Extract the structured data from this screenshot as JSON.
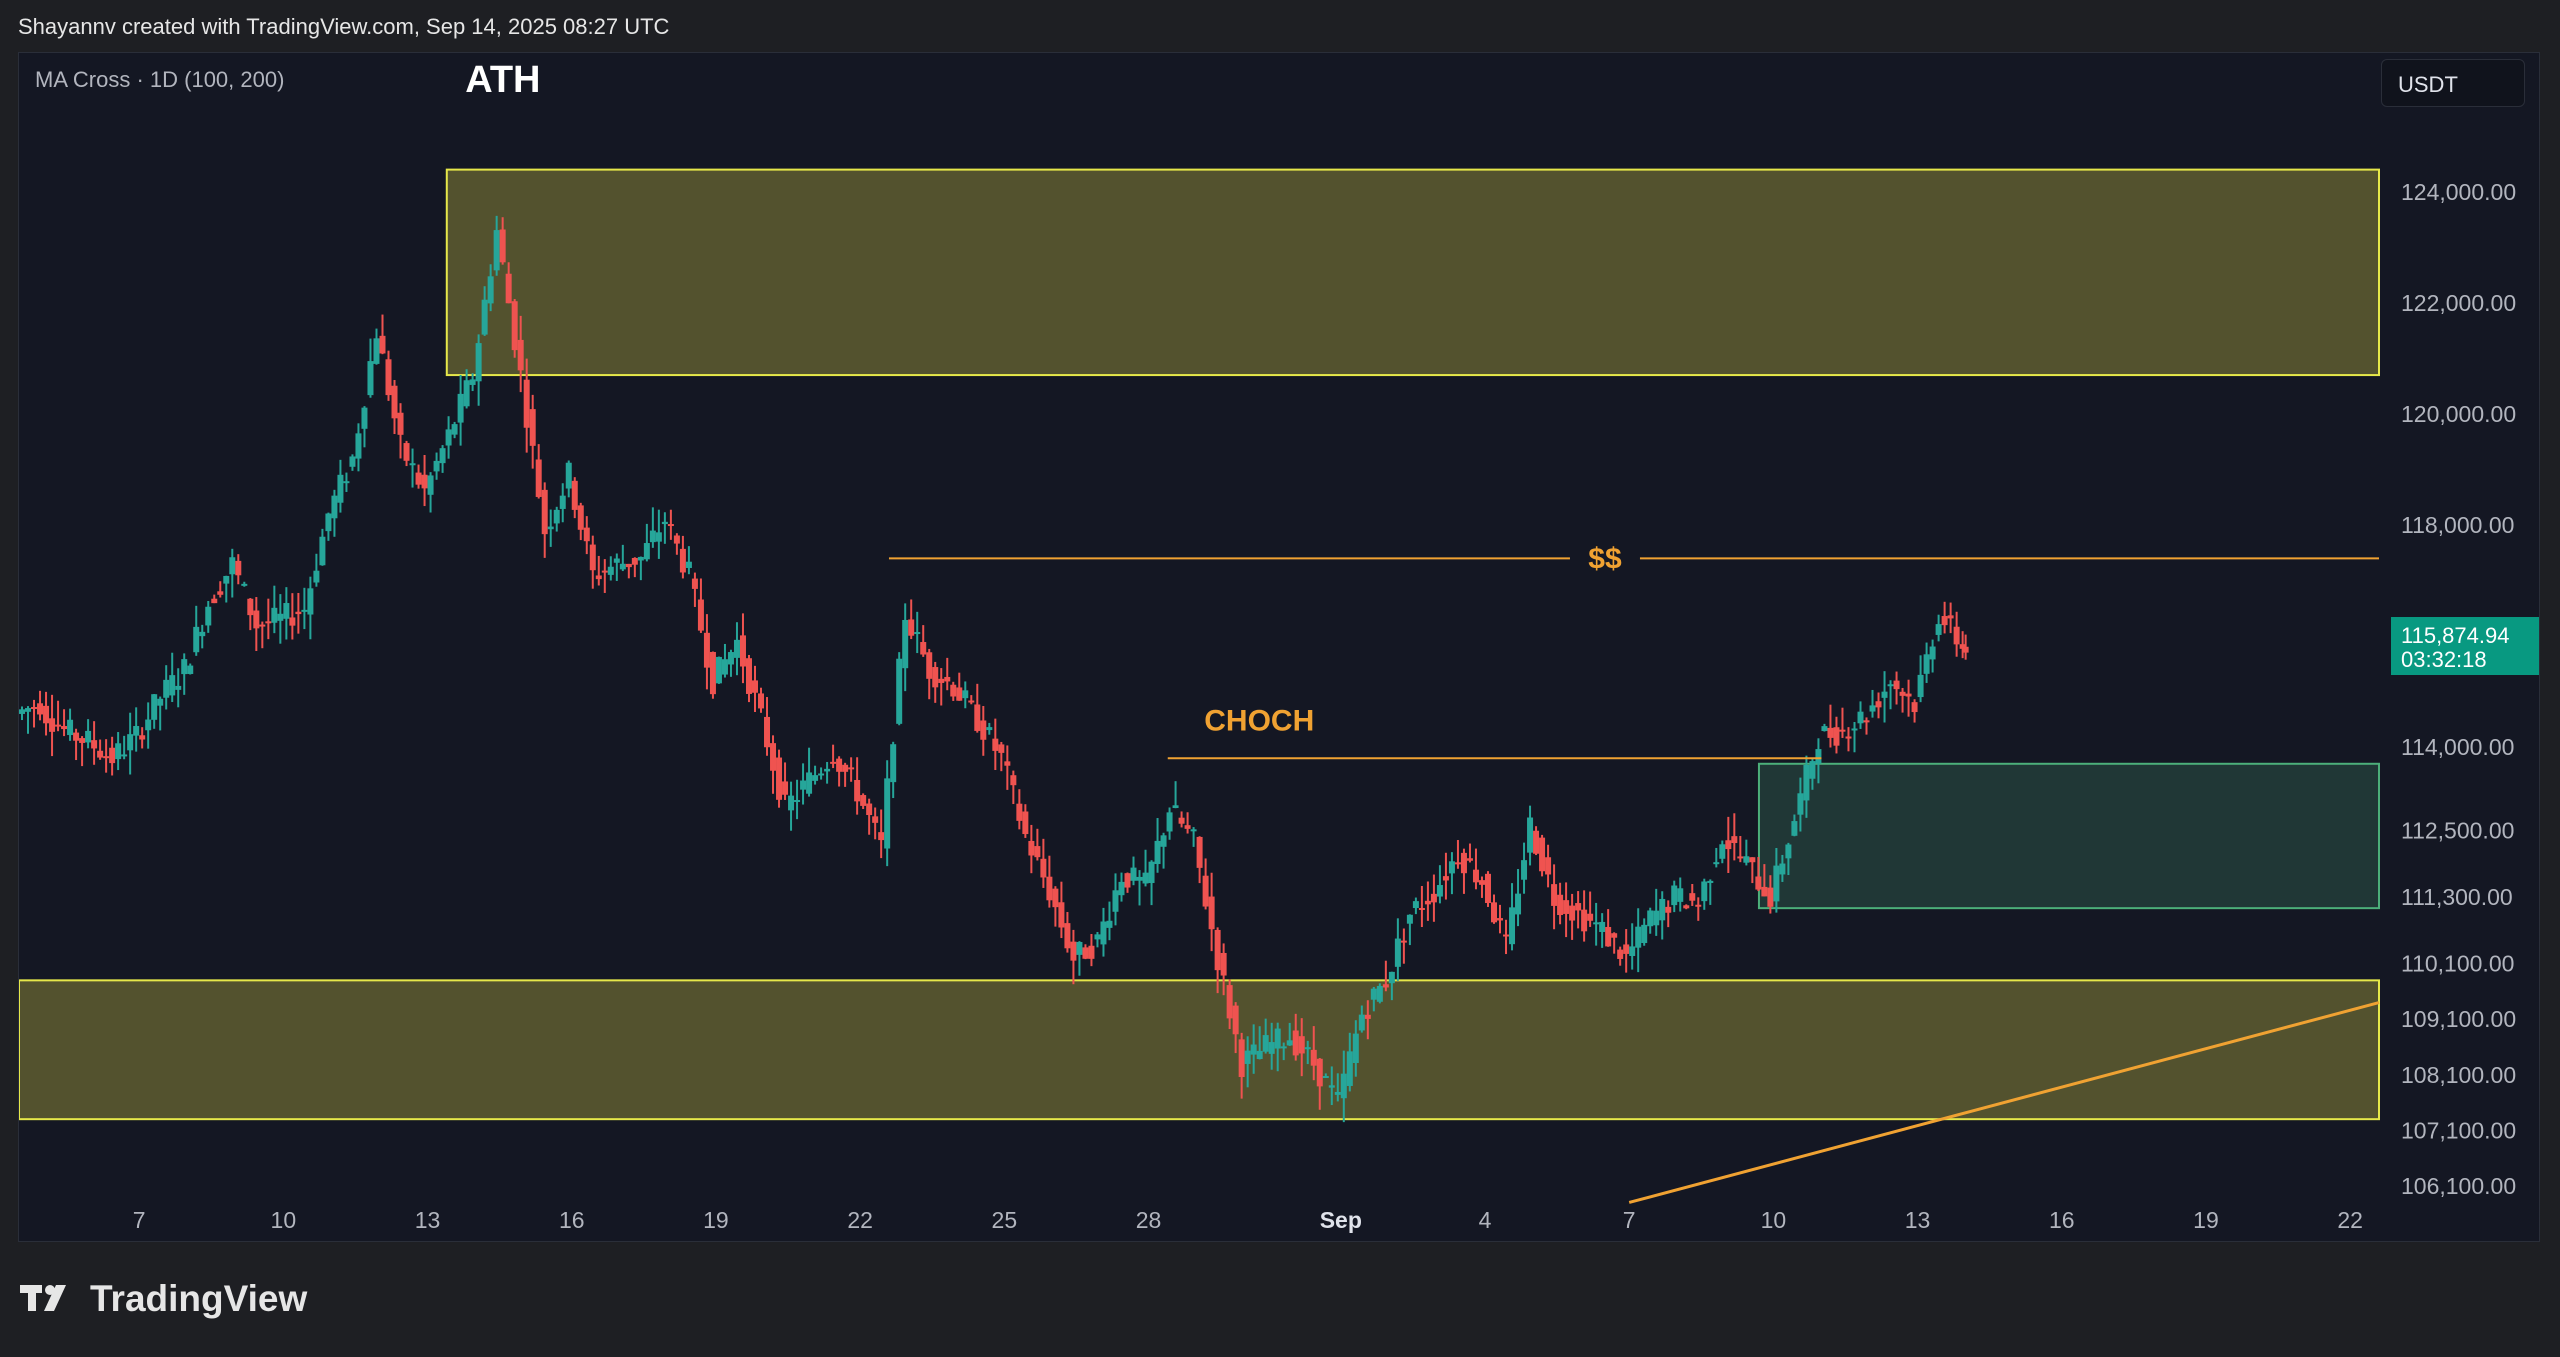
{
  "header": {
    "attribution": "Shayannv created with TradingView.com, Sep 14, 2025 08:27 UTC"
  },
  "indicator": {
    "label": "MA Cross · 1D (100, 200)"
  },
  "currency": "USDT",
  "brand": "TradingView",
  "colors": {
    "background": "#141723",
    "up": "#26a69a",
    "down": "#ef5350",
    "supply_zone": "#e6e84a",
    "demand_zone": "#4caf7a",
    "level_line": "#f0a232",
    "current_price_bg": "#089981"
  },
  "chart_data": {
    "type": "candlestick",
    "title": "",
    "xlabel": "",
    "ylabel": "",
    "ylim": [
      104800,
      126500
    ],
    "y_axis_ticks": [
      {
        "value": 124000,
        "label": "124,000.00"
      },
      {
        "value": 122000,
        "label": "122,000.00"
      },
      {
        "value": 120000,
        "label": "120,000.00"
      },
      {
        "value": 118000,
        "label": "118,000.00"
      },
      {
        "value": 114000,
        "label": "114,000.00"
      },
      {
        "value": 112500,
        "label": "112,500.00"
      },
      {
        "value": 111300,
        "label": "111,300.00"
      },
      {
        "value": 110100,
        "label": "110,100.00"
      },
      {
        "value": 109100,
        "label": "109,100.00"
      },
      {
        "value": 108100,
        "label": "108,100.00"
      },
      {
        "value": 107100,
        "label": "107,100.00"
      },
      {
        "value": 106100,
        "label": "106,100.00"
      }
    ],
    "x_axis_ticks": [
      {
        "day": 7,
        "label": "7"
      },
      {
        "day": 10,
        "label": "10"
      },
      {
        "day": 13,
        "label": "13"
      },
      {
        "day": 16,
        "label": "16"
      },
      {
        "day": 19,
        "label": "19"
      },
      {
        "day": 22,
        "label": "22"
      },
      {
        "day": 25,
        "label": "25"
      },
      {
        "day": 28,
        "label": "28"
      },
      {
        "day": 32,
        "label": "Sep",
        "bold": true
      },
      {
        "day": 35,
        "label": "4"
      },
      {
        "day": 38,
        "label": "7"
      },
      {
        "day": 41,
        "label": "10"
      },
      {
        "day": 44,
        "label": "13"
      },
      {
        "day": 47,
        "label": "16"
      },
      {
        "day": 50,
        "label": "19"
      },
      {
        "day": 53,
        "label": "22"
      }
    ],
    "x_range_days": [
      4.5,
      53.6
    ],
    "current_price": {
      "value": 115874.94,
      "label": "115,874.94",
      "countdown": "03:32:18"
    },
    "daily_closes": [
      {
        "day": 4.5,
        "o": 114600,
        "c": 114800
      },
      {
        "day": 5,
        "o": 114700,
        "c": 114300
      },
      {
        "day": 5.5,
        "o": 114300,
        "c": 114100
      },
      {
        "day": 6,
        "o": 114100,
        "c": 113800
      },
      {
        "day": 6.5,
        "o": 113800,
        "c": 114200
      },
      {
        "day": 7,
        "o": 114200,
        "c": 114900
      },
      {
        "day": 7.5,
        "o": 114900,
        "c": 115400
      },
      {
        "day": 8,
        "o": 115400,
        "c": 116600
      },
      {
        "day": 8.5,
        "o": 116600,
        "c": 117300
      },
      {
        "day": 9,
        "o": 117300,
        "c": 116200
      },
      {
        "day": 9.5,
        "o": 116200,
        "c": 116300
      },
      {
        "day": 10,
        "o": 116300,
        "c": 116500
      },
      {
        "day": 10.5,
        "o": 116500,
        "c": 118200
      },
      {
        "day": 11,
        "o": 118200,
        "c": 119200
      },
      {
        "day": 11.5,
        "o": 119200,
        "c": 121500
      },
      {
        "day": 12,
        "o": 121500,
        "c": 119400
      },
      {
        "day": 12.5,
        "o": 119400,
        "c": 118600
      },
      {
        "day": 13,
        "o": 118600,
        "c": 119600
      },
      {
        "day": 13.5,
        "o": 119600,
        "c": 120700
      },
      {
        "day": 14,
        "o": 120700,
        "c": 123300
      },
      {
        "day": 14.5,
        "o": 123300,
        "c": 120700
      },
      {
        "day": 15,
        "o": 120700,
        "c": 117900
      },
      {
        "day": 15.5,
        "o": 117900,
        "c": 118900
      },
      {
        "day": 16,
        "o": 118900,
        "c": 117100
      },
      {
        "day": 16.5,
        "o": 117100,
        "c": 117300
      },
      {
        "day": 17,
        "o": 117300,
        "c": 117400
      },
      {
        "day": 17.5,
        "o": 117400,
        "c": 118100
      },
      {
        "day": 18,
        "o": 118100,
        "c": 117100
      },
      {
        "day": 18.5,
        "o": 117100,
        "c": 115200
      },
      {
        "day": 19,
        "o": 115200,
        "c": 115900
      },
      {
        "day": 19.5,
        "o": 115900,
        "c": 114500
      },
      {
        "day": 20,
        "o": 114500,
        "c": 112900
      },
      {
        "day": 20.5,
        "o": 112900,
        "c": 113400
      },
      {
        "day": 21,
        "o": 113400,
        "c": 113900
      },
      {
        "day": 21.5,
        "o": 113900,
        "c": 113200
      },
      {
        "day": 22,
        "o": 113200,
        "c": 112200
      },
      {
        "day": 22.5,
        "o": 112200,
        "c": 116400
      },
      {
        "day": 23,
        "o": 116400,
        "c": 115400
      },
      {
        "day": 23.5,
        "o": 115400,
        "c": 115100
      },
      {
        "day": 24,
        "o": 115100,
        "c": 114500
      },
      {
        "day": 24.5,
        "o": 114500,
        "c": 113800
      },
      {
        "day": 25,
        "o": 113800,
        "c": 112400
      },
      {
        "day": 25.5,
        "o": 112400,
        "c": 111400
      },
      {
        "day": 26,
        "o": 111400,
        "c": 110200
      },
      {
        "day": 26.5,
        "o": 110200,
        "c": 110500
      },
      {
        "day": 27,
        "o": 110500,
        "c": 111700
      },
      {
        "day": 27.5,
        "o": 111700,
        "c": 111500
      },
      {
        "day": 28,
        "o": 111500,
        "c": 112900
      },
      {
        "day": 28.5,
        "o": 112900,
        "c": 112300
      },
      {
        "day": 29,
        "o": 112300,
        "c": 110200
      },
      {
        "day": 29.5,
        "o": 110200,
        "c": 108300
      },
      {
        "day": 30,
        "o": 108300,
        "c": 108600
      },
      {
        "day": 30.5,
        "o": 108600,
        "c": 108800
      },
      {
        "day": 31,
        "o": 108800,
        "c": 108300
      },
      {
        "day": 31.5,
        "o": 108300,
        "c": 107600
      },
      {
        "day": 32,
        "o": 107600,
        "c": 109200
      },
      {
        "day": 32.5,
        "o": 109200,
        "c": 109800
      },
      {
        "day": 33,
        "o": 109800,
        "c": 111000
      },
      {
        "day": 33.5,
        "o": 111000,
        "c": 111400
      },
      {
        "day": 34,
        "o": 111400,
        "c": 112100
      },
      {
        "day": 34.5,
        "o": 112100,
        "c": 111600
      },
      {
        "day": 35,
        "o": 111600,
        "c": 110400
      },
      {
        "day": 35.5,
        "o": 110400,
        "c": 112600
      },
      {
        "day": 36,
        "o": 112600,
        "c": 111300
      },
      {
        "day": 36.5,
        "o": 111300,
        "c": 111000
      },
      {
        "day": 37,
        "o": 111000,
        "c": 110700
      },
      {
        "day": 37.5,
        "o": 110700,
        "c": 110200
      },
      {
        "day": 38,
        "o": 110200,
        "c": 110900
      },
      {
        "day": 38.5,
        "o": 110900,
        "c": 111300
      },
      {
        "day": 39,
        "o": 111300,
        "c": 111200
      },
      {
        "day": 39.5,
        "o": 111200,
        "c": 112400
      },
      {
        "day": 40,
        "o": 112400,
        "c": 111900
      },
      {
        "day": 40.5,
        "o": 111900,
        "c": 111300
      },
      {
        "day": 41,
        "o": 111300,
        "c": 112700
      },
      {
        "day": 41.5,
        "o": 112700,
        "c": 114200
      },
      {
        "day": 42,
        "o": 114200,
        "c": 114300
      },
      {
        "day": 42.5,
        "o": 114300,
        "c": 114600
      },
      {
        "day": 43,
        "o": 114600,
        "c": 115200
      },
      {
        "day": 43.5,
        "o": 115200,
        "c": 114800
      },
      {
        "day": 44,
        "o": 114800,
        "c": 116400
      },
      {
        "day": 44.5,
        "o": 116400,
        "c": 115800
      },
      {
        "day": 45,
        "o": 115800,
        "c": 115874.94
      }
    ],
    "zones": [
      {
        "name": "ATH supply zone",
        "day_start": 13.4,
        "day_end": 53.6,
        "price_low": 120700,
        "price_high": 124400
      },
      {
        "name": "support zone",
        "day_start": 4.5,
        "day_end": 53.6,
        "price_low": 107300,
        "price_high": 109800
      },
      {
        "name": "demand zone",
        "day_start": 40.7,
        "day_end": 53.6,
        "price_low": 111100,
        "price_high": 113700
      }
    ],
    "levels": [
      {
        "name": "liquidity",
        "day_start": 22.6,
        "day_end": 53.6,
        "price": 117400
      },
      {
        "name": "choch",
        "day_start": 28.4,
        "day_end": 42.0,
        "price": 113800
      }
    ],
    "trendline": {
      "day_start": 38.0,
      "price_start": 105800,
      "day_end": 53.6,
      "price_end": 109400
    },
    "annotations": [
      {
        "text": "ATH",
        "day": 14.2,
        "price": 125800,
        "color": "white"
      },
      {
        "text": "$$",
        "day": 36.9,
        "price": 117400,
        "color": "orange"
      },
      {
        "text": "CHOCH",
        "day": 30.2,
        "price": 114300,
        "color": "orange"
      }
    ]
  }
}
